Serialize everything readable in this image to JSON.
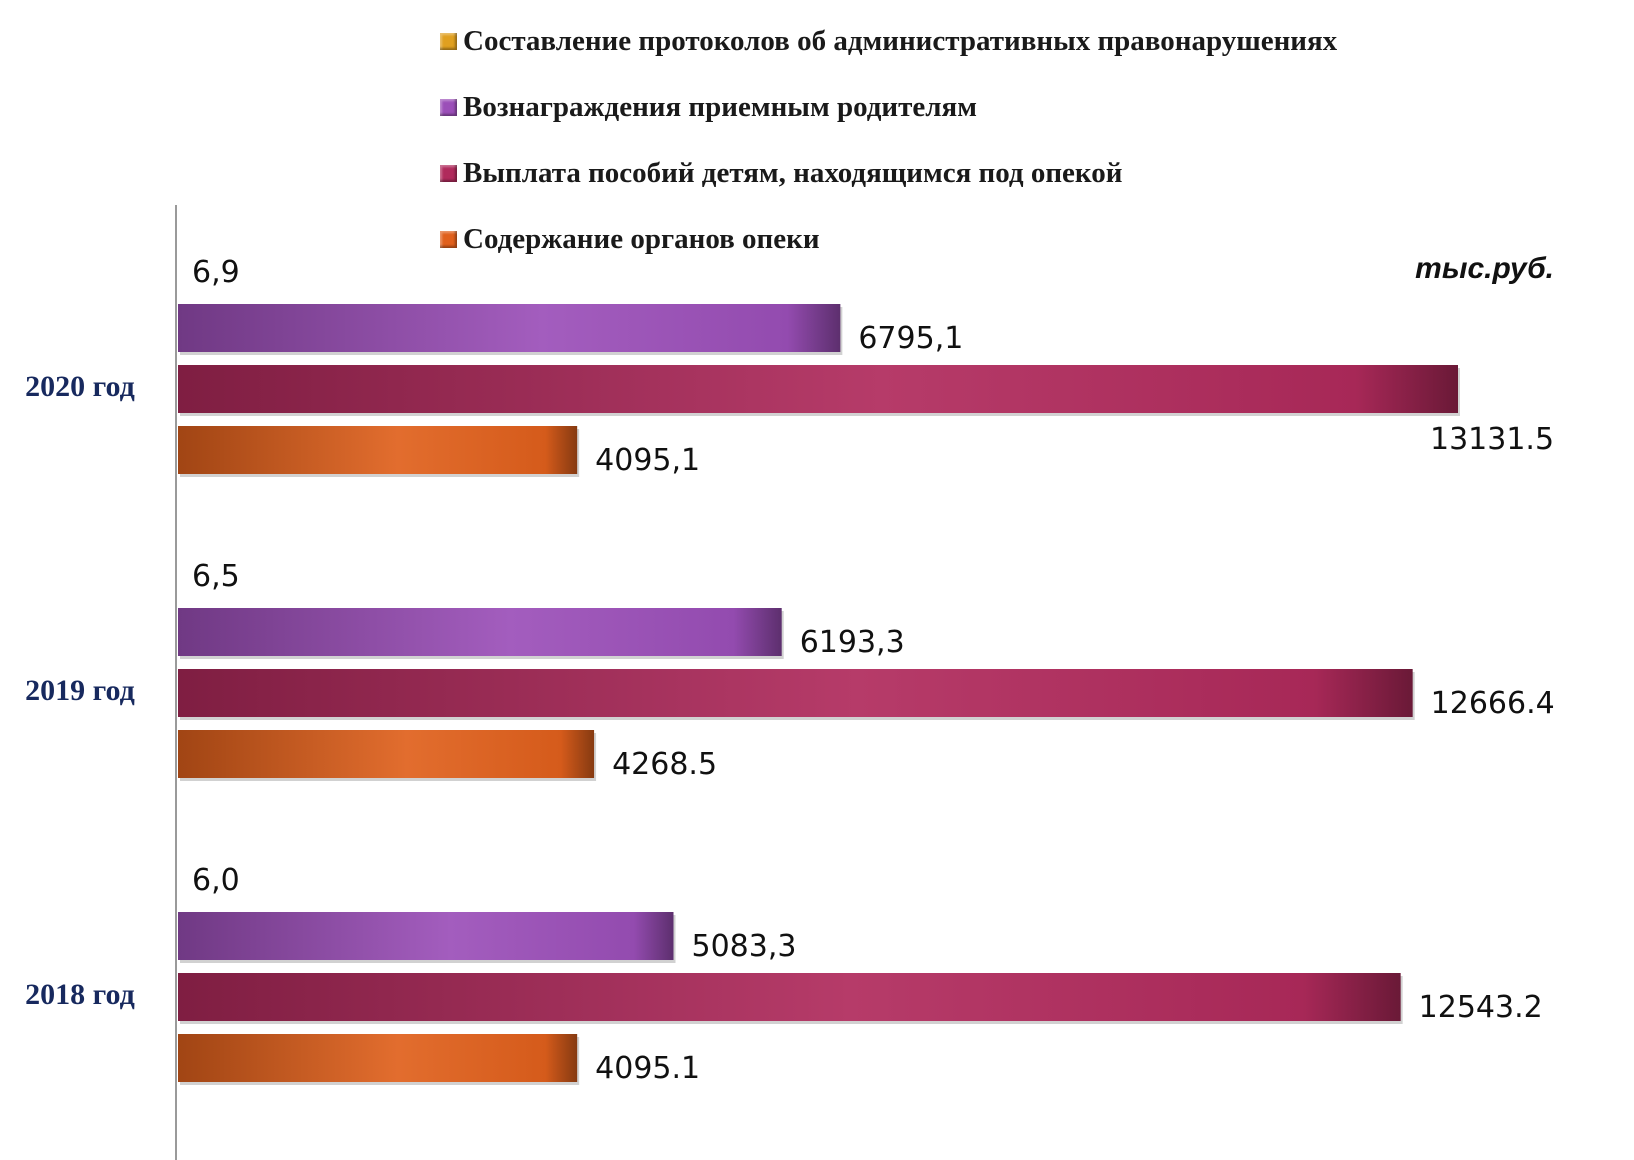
{
  "unit_label": "тыс.руб.",
  "colors": {
    "Составление протоколов об административных правонарушениях": "#e0a020",
    "Вознаграждения приемным родителям": "#9b4fb8",
    "Выплата пособий детям, находящимся под опекой": "#b02a5c",
    "Содержание органов опеки": "#e0601c",
    "category_label": "#17295e"
  },
  "chart_data": {
    "type": "bar",
    "orientation": "horizontal",
    "categories": [
      "2020 год",
      "2019 год",
      "2018 год"
    ],
    "series": [
      {
        "name": "Составление протоколов об административных правонарушениях",
        "values": [
          6.9,
          6.5,
          6.0
        ],
        "labels": [
          "6,9",
          "6,5",
          "6,0"
        ]
      },
      {
        "name": "Вознаграждения приемным родителям",
        "values": [
          6795.1,
          6193.3,
          5083.3
        ],
        "labels": [
          "6795,1",
          "6193,3",
          "5083,3"
        ]
      },
      {
        "name": "Выплата пособий детям, находящимся под опекой",
        "values": [
          13131.5,
          12666.4,
          12543.2
        ],
        "labels": [
          "13131.5",
          "12666.4",
          "12543.2"
        ]
      },
      {
        "name": "Содержание органов опеки",
        "values": [
          4095.1,
          4268.5,
          4095.1
        ],
        "labels": [
          "4095,1",
          "4268.5",
          "4095.1"
        ]
      }
    ],
    "legend": [
      "Составление протоколов об административных правонарушениях",
      "Вознаграждения приемным родителям",
      "Выплата пособий детям, находящимся под опекой",
      "Содержание органов опеки"
    ],
    "legend_position": "top",
    "title": "",
    "xlabel": "",
    "ylabel": "",
    "grid": false
  }
}
